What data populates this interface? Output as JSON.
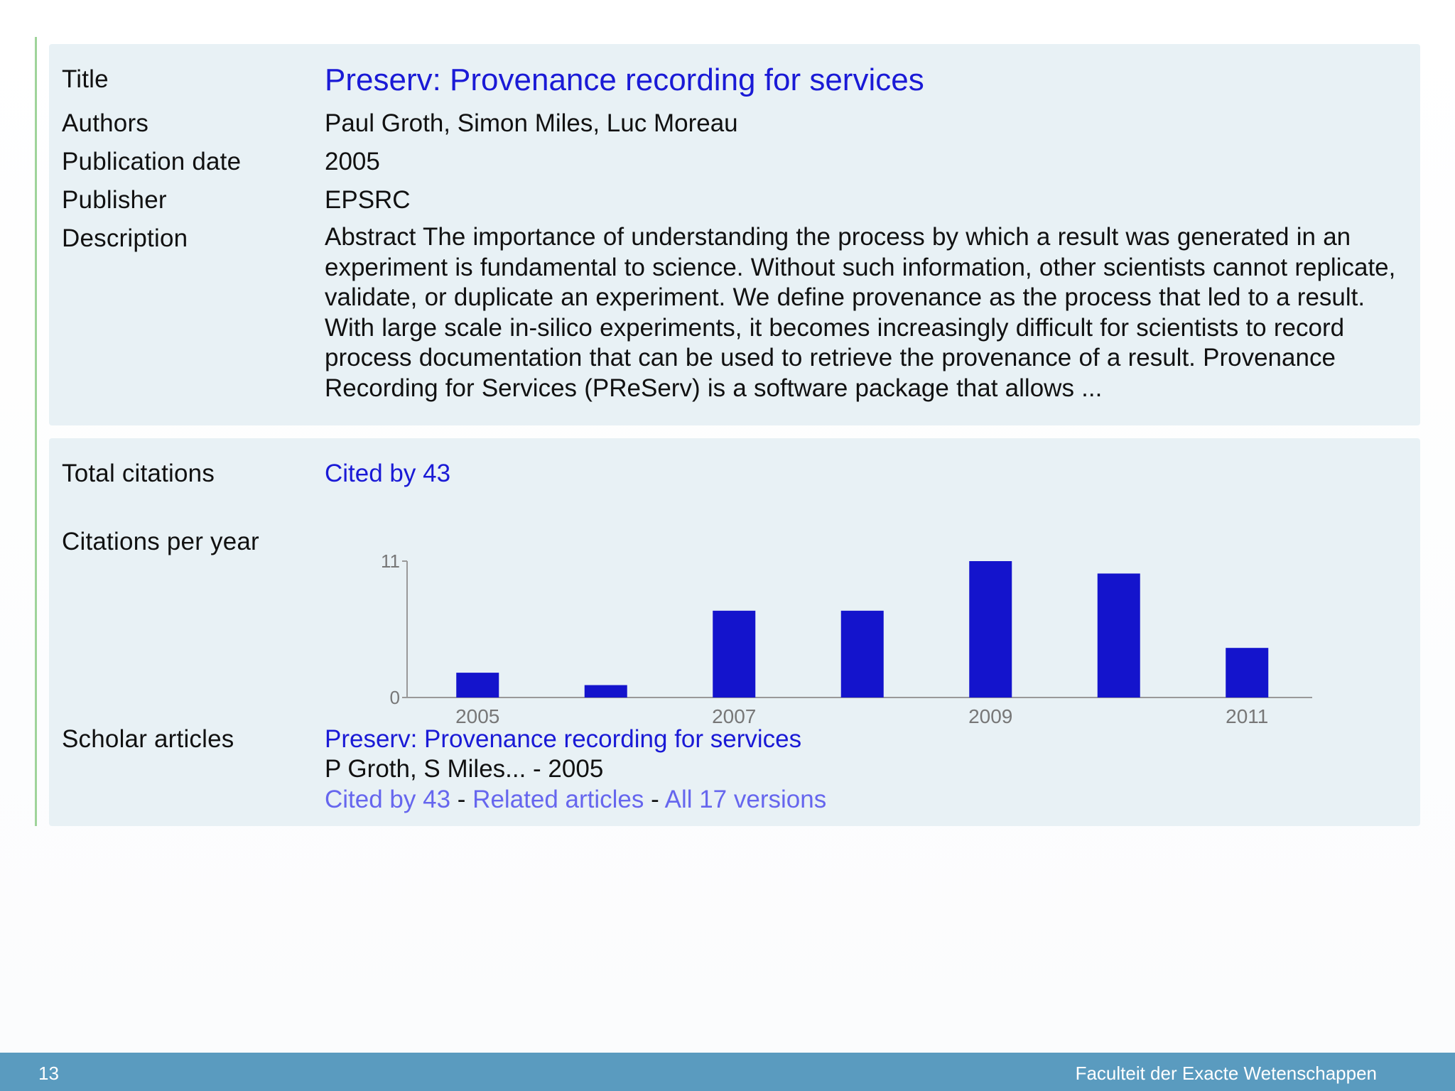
{
  "details": {
    "title_label": "Title",
    "title_value": "Preserv: Provenance recording for services",
    "authors_label": "Authors",
    "authors_value": "Paul Groth, Simon Miles, Luc Moreau",
    "pubdate_label": "Publication date",
    "pubdate_value": "2005",
    "publisher_label": "Publisher",
    "publisher_value": "EPSRC",
    "description_label": "Description",
    "description_value": "Abstract The importance of understanding the process by which a result was generated in an experiment is fundamental to science. Without such information, other scientists cannot replicate, validate, or duplicate an experiment. We define provenance as the process that led to a result. With large scale in-silico experiments, it becomes increasingly difficult for scientists to record process documentation that can be used to retrieve the provenance of a result. Provenance Recording for Services (PReServ) is a software package that allows ..."
  },
  "citations": {
    "total_label": "Total citations",
    "total_link": "Cited by 43",
    "per_year_label": "Citations per year",
    "scholar_label": "Scholar articles",
    "article_title": "Preserv: Provenance recording for services",
    "article_authors": "P Groth, S Miles... - 2005",
    "cited_by_link": "Cited by 43",
    "separator": " - ",
    "related_link": "Related articles",
    "versions_link": "All 17 versions"
  },
  "chart_data": {
    "type": "bar",
    "title": "Citations per year",
    "categories": [
      "2005",
      "2006",
      "2007",
      "2008",
      "2009",
      "2010",
      "2011"
    ],
    "values": [
      2,
      1,
      7,
      7,
      11,
      10,
      4
    ],
    "x_tick_labels": [
      "2005",
      "2007",
      "2009",
      "2011"
    ],
    "y_tick_labels": [
      "0",
      "11"
    ],
    "ylim": [
      0,
      11
    ],
    "bar_color": "#1414cc",
    "axis_color": "#999999"
  },
  "footer": {
    "page_number": "13",
    "organization": "Faculteit der Exacte Wetenschappen"
  }
}
